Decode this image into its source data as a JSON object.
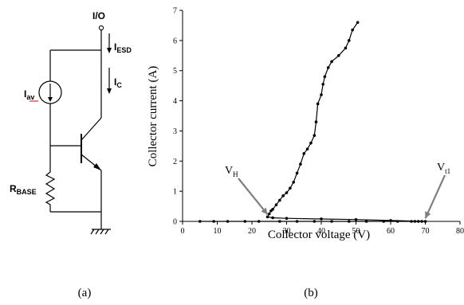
{
  "circuit": {
    "io_label": "I/O",
    "esd_current": {
      "main": "I",
      "sub": "ESD"
    },
    "collector_current": {
      "main": "I",
      "sub": "C"
    },
    "avalanche_source": {
      "main": "I",
      "sub": "av"
    },
    "base_resistor": {
      "main": "R",
      "sub": "BASE"
    }
  },
  "captions": {
    "a": "(a)",
    "b": "(b)"
  },
  "chart_data": {
    "type": "line",
    "title": "",
    "xlabel": "Collector voltage (V)",
    "ylabel": "Collector current (A)",
    "xlim": [
      0,
      80
    ],
    "ylim": [
      0,
      7
    ],
    "x_ticks": [
      0,
      10,
      20,
      30,
      40,
      50,
      60,
      70,
      80
    ],
    "y_ticks": [
      0,
      1,
      2,
      3,
      4,
      5,
      6,
      7
    ],
    "grid": false,
    "annotations": [
      {
        "label": {
          "main": "V",
          "sub": "H"
        },
        "points_to": [
          24.5,
          0.15
        ]
      },
      {
        "label": {
          "main": "V",
          "sub": "t1"
        },
        "points_to": [
          70,
          0.02
        ]
      }
    ],
    "series": [
      {
        "points": [
          [
            5,
            0.0
          ],
          [
            9,
            0.0
          ],
          [
            13,
            0.0
          ],
          [
            18,
            0.0
          ],
          [
            22,
            0.0
          ],
          [
            28,
            0.0
          ],
          [
            33,
            0.0
          ],
          [
            38,
            0.0
          ],
          [
            43,
            0.0
          ],
          [
            48,
            0.0
          ],
          [
            53,
            0.0
          ],
          [
            58,
            0.0
          ],
          [
            62,
            0.0
          ],
          [
            66,
            0.0
          ],
          [
            67,
            0.0
          ],
          [
            68,
            0.0
          ],
          [
            69,
            0.0
          ],
          [
            70,
            0.0
          ],
          [
            60,
            0.03
          ],
          [
            50,
            0.06
          ],
          [
            40,
            0.08
          ],
          [
            30,
            0.1
          ],
          [
            26,
            0.12
          ],
          [
            24.5,
            0.15
          ],
          [
            25,
            0.25
          ],
          [
            25.5,
            0.35
          ],
          [
            26,
            0.4
          ],
          [
            27,
            0.55
          ],
          [
            28,
            0.7
          ],
          [
            29,
            0.85
          ],
          [
            30,
            0.95
          ],
          [
            31,
            1.1
          ],
          [
            32,
            1.3
          ],
          [
            33,
            1.6
          ],
          [
            34,
            1.9
          ],
          [
            35,
            2.25
          ],
          [
            36,
            2.4
          ],
          [
            37,
            2.6
          ],
          [
            38,
            2.85
          ],
          [
            38.5,
            3.3
          ],
          [
            39,
            3.9
          ],
          [
            40,
            4.2
          ],
          [
            40.5,
            4.55
          ],
          [
            41,
            4.8
          ],
          [
            42,
            5.1
          ],
          [
            43,
            5.3
          ],
          [
            45,
            5.5
          ],
          [
            47,
            5.75
          ],
          [
            48,
            6.0
          ],
          [
            49,
            6.35
          ],
          [
            50.5,
            6.6
          ]
        ]
      }
    ]
  }
}
